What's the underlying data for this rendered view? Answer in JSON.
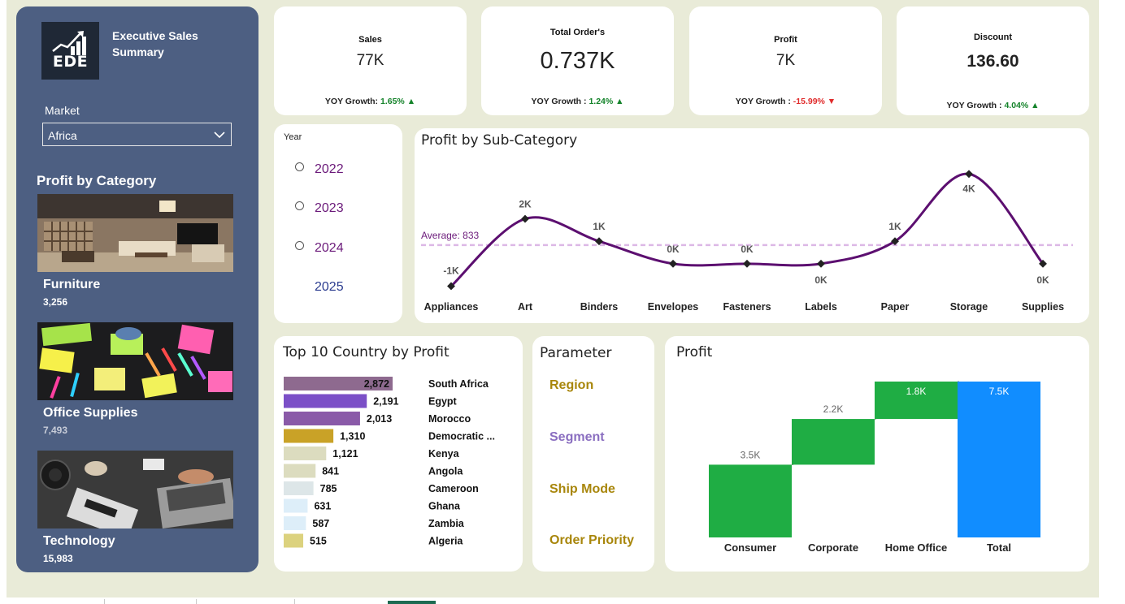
{
  "app": {
    "logo_text": "EDE",
    "title": "Executive Sales Summary"
  },
  "sidebar": {
    "market_label": "Market",
    "market_value": "Africa",
    "profit_by_category_title": "Profit by Category",
    "categories": [
      {
        "name": "Furniture",
        "value": "3,256"
      },
      {
        "name": "Office Supplies",
        "value": "7,493"
      },
      {
        "name": "Technology",
        "value": "15,983"
      }
    ]
  },
  "kpis": [
    {
      "label": "Sales",
      "value": "77K",
      "growth_label": "YOY Growth:",
      "growth_value": "1.65%",
      "trend": "up"
    },
    {
      "label": "Total Order's",
      "value": "0.737K",
      "growth_label": "YOY Growth :",
      "growth_value": "1.24%",
      "trend": "up"
    },
    {
      "label": "Profit",
      "value": "7K",
      "growth_label": "YOY Growth :",
      "growth_value": "-15.99%",
      "trend": "down"
    },
    {
      "label": "Discount",
      "value": "136.60",
      "growth_label": "YOY Growth :",
      "growth_value": "4.04%",
      "trend": "up"
    }
  ],
  "year_slicer": {
    "title": "Year",
    "options": [
      "2022",
      "2023",
      "2024",
      "2025"
    ]
  },
  "parameter": {
    "title": "Parameter",
    "items": [
      {
        "label": "Region",
        "color": "#a8860b"
      },
      {
        "label": "Segment",
        "color": "#8a6ec0"
      },
      {
        "label": "Ship Mode",
        "color": "#a8860b"
      },
      {
        "label": "Order Priority",
        "color": "#a8860b"
      }
    ]
  },
  "colors": {
    "canvas": "#e9ebd8",
    "sidebar": "#4d5f82",
    "line": "#5c0f70",
    "waterfall_increase": "#1fad44",
    "waterfall_total": "#118dff"
  },
  "chart_data": [
    {
      "type": "line",
      "title": "Profit by Sub-Category",
      "categories": [
        "Appliances",
        "Art",
        "Binders",
        "Envelopes",
        "Fasteners",
        "Labels",
        "Paper",
        "Storage",
        "Supplies"
      ],
      "values": [
        -1000,
        2000,
        1000,
        0,
        0,
        0,
        1000,
        4000,
        0
      ],
      "data_labels": [
        "-1K",
        "2K",
        "1K",
        "0K",
        "0K",
        "0K",
        "1K",
        "4K",
        "0K"
      ],
      "average": 833,
      "average_label": "Average: 833",
      "ylim": [
        -1200,
        4300
      ],
      "smooth": true
    },
    {
      "type": "bar",
      "orientation": "horizontal",
      "title": "Top 10 Country by Profit",
      "categories": [
        "South Africa",
        "Egypt",
        "Morocco",
        "Democratic ...",
        "Kenya",
        "Angola",
        "Cameroon",
        "Ghana",
        "Zambia",
        "Algeria"
      ],
      "values": [
        2872,
        2191,
        2013,
        1310,
        1121,
        841,
        785,
        631,
        587,
        515
      ],
      "data_labels": [
        "2,872",
        "2,191",
        "2,013",
        "1,310",
        "1,121",
        "841",
        "785",
        "631",
        "587",
        "515"
      ],
      "colors": [
        "#8e6a8f",
        "#7b4fc7",
        "#8a5aa8",
        "#c9a227",
        "#dcdcbf",
        "#dcdcbf",
        "#dde6e8",
        "#ddeef9",
        "#ddeef9",
        "#dcd27e"
      ],
      "xlim": [
        0,
        2872
      ]
    },
    {
      "type": "bar",
      "subtype": "waterfall",
      "title": "Profit",
      "categories": [
        "Consumer",
        "Corporate",
        "Home Office",
        "Total"
      ],
      "values": [
        3500,
        2200,
        1800,
        7500
      ],
      "data_labels": [
        "3.5K",
        "2.2K",
        "1.8K",
        "7.5K"
      ],
      "ylim": [
        0,
        7500
      ]
    }
  ]
}
